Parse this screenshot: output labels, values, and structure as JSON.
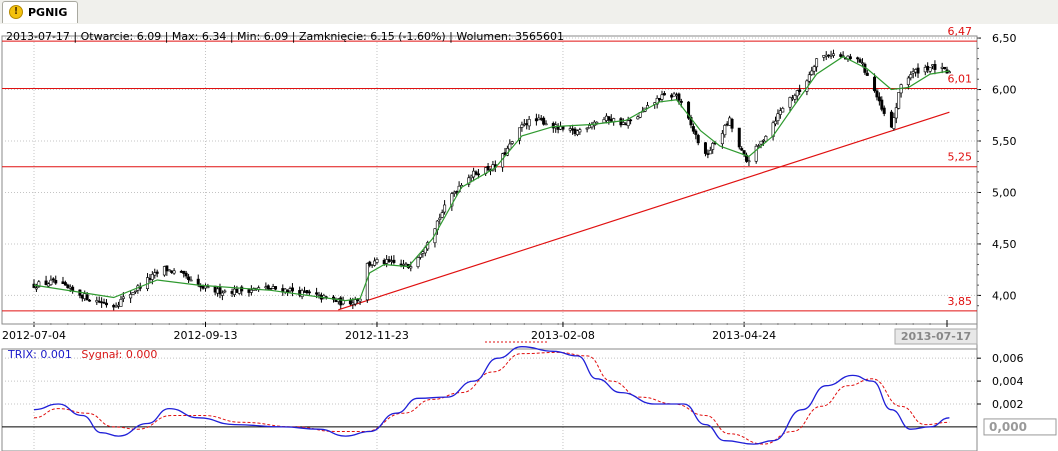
{
  "tab": {
    "label": "PGNIG",
    "icon": "warning-icon"
  },
  "info_bar": {
    "date": "2013-07-17",
    "open": "Otwarcie: 6.09",
    "high": "Max: 6.34",
    "low": "Min: 6.09",
    "close": "Zamknięcie: 6.15 (-1.60%)",
    "volume": "Wolumen: 3565601"
  },
  "trix_legend": {
    "trix": "TRIX: 0.001",
    "signal": "Sygnał: 0.000"
  },
  "colors": {
    "up_candle": "#ffffff",
    "down_candle": "#000000",
    "sma": "#2f9a2f",
    "levels": "#e01010",
    "trix": "#2020d8",
    "signal": "#e01010",
    "grid": "#c4c4c4"
  },
  "chart_data": [
    {
      "type": "candlestick",
      "title": "PGNIG",
      "x_tick_labels": [
        "2012-07-04",
        "2012-09-13",
        "2012-11-23",
        "2013-02-08",
        "2013-04-24"
      ],
      "x_cursor_label": "2013-07-17",
      "y_tick_labels": [
        "4,00",
        "4,50",
        "5,00",
        "5,50",
        "6,00",
        "6,50"
      ],
      "ylim": [
        3.8,
        6.52
      ],
      "grid": true,
      "horizontal_levels": [
        {
          "value": 6.47,
          "label": "6,47"
        },
        {
          "value": 6.01,
          "label": "6,01"
        },
        {
          "value": 5.25,
          "label": "5,25"
        },
        {
          "value": 3.85,
          "label": "3,85"
        }
      ],
      "trendline": {
        "from": [
          "2012-11-07",
          3.86
        ],
        "to": [
          "2013-07-18",
          5.78
        ]
      },
      "close_path": [
        [
          "2012-07-04",
          4.1
        ],
        [
          "2012-07-12",
          4.13
        ],
        [
          "2012-07-20",
          4.04
        ],
        [
          "2012-07-28",
          3.96
        ],
        [
          "2012-08-06",
          3.9
        ],
        [
          "2012-08-13",
          4.02
        ],
        [
          "2012-08-20",
          4.15
        ],
        [
          "2012-08-27",
          4.26
        ],
        [
          "2012-09-03",
          4.2
        ],
        [
          "2012-09-10",
          4.08
        ],
        [
          "2012-09-18",
          4.04
        ],
        [
          "2012-09-28",
          4.05
        ],
        [
          "2012-10-08",
          4.07
        ],
        [
          "2012-10-18",
          4.05
        ],
        [
          "2012-10-28",
          4.0
        ],
        [
          "2012-11-04",
          3.96
        ],
        [
          "2012-11-10",
          3.92
        ],
        [
          "2012-11-16",
          3.98
        ],
        [
          "2012-11-19",
          4.3
        ],
        [
          "2012-11-24",
          4.33
        ],
        [
          "2012-11-30",
          4.31
        ],
        [
          "2012-12-06",
          4.28
        ],
        [
          "2012-12-12",
          4.45
        ],
        [
          "2012-12-18",
          4.72
        ],
        [
          "2012-12-24",
          4.98
        ],
        [
          "2012-12-30",
          5.15
        ],
        [
          "2013-01-06",
          5.22
        ],
        [
          "2013-01-11",
          5.25
        ],
        [
          "2013-01-17",
          5.45
        ],
        [
          "2013-01-23",
          5.68
        ],
        [
          "2013-01-30",
          5.7
        ],
        [
          "2013-02-06",
          5.62
        ],
        [
          "2013-02-13",
          5.58
        ],
        [
          "2013-02-20",
          5.68
        ],
        [
          "2013-02-27",
          5.72
        ],
        [
          "2013-03-06",
          5.66
        ],
        [
          "2013-03-13",
          5.78
        ],
        [
          "2013-03-20",
          5.92
        ],
        [
          "2013-03-27",
          5.95
        ],
        [
          "2013-04-03",
          5.6
        ],
        [
          "2013-04-08",
          5.35
        ],
        [
          "2013-04-13",
          5.52
        ],
        [
          "2013-04-18",
          5.7
        ],
        [
          "2013-04-21",
          5.48
        ],
        [
          "2013-04-25",
          5.3
        ],
        [
          "2013-04-30",
          5.45
        ],
        [
          "2013-05-06",
          5.68
        ],
        [
          "2013-05-12",
          5.9
        ],
        [
          "2013-05-18",
          6.0
        ],
        [
          "2013-05-24",
          6.3
        ],
        [
          "2013-05-30",
          6.35
        ],
        [
          "2013-06-05",
          6.3
        ],
        [
          "2013-06-11",
          6.28
        ],
        [
          "2013-06-16",
          6.05
        ],
        [
          "2013-06-20",
          5.8
        ],
        [
          "2013-06-24",
          5.62
        ],
        [
          "2013-06-28",
          6.05
        ],
        [
          "2013-07-02",
          6.15
        ],
        [
          "2013-07-06",
          6.2
        ],
        [
          "2013-07-10",
          6.22
        ],
        [
          "2013-07-14",
          6.2
        ],
        [
          "2013-07-18",
          6.15
        ]
      ],
      "sma_path": [
        [
          "2012-07-04",
          4.1
        ],
        [
          "2012-08-06",
          3.98
        ],
        [
          "2012-08-24",
          4.15
        ],
        [
          "2012-09-10",
          4.1
        ],
        [
          "2012-10-10",
          4.05
        ],
        [
          "2012-11-10",
          3.95
        ],
        [
          "2012-11-16",
          3.97
        ],
        [
          "2012-11-20",
          4.22
        ],
        [
          "2012-11-26",
          4.3
        ],
        [
          "2012-12-06",
          4.28
        ],
        [
          "2012-12-16",
          4.55
        ],
        [
          "2012-12-28",
          5.05
        ],
        [
          "2013-01-11",
          5.24
        ],
        [
          "2013-01-22",
          5.55
        ],
        [
          "2013-02-04",
          5.64
        ],
        [
          "2013-02-20",
          5.66
        ],
        [
          "2013-03-06",
          5.7
        ],
        [
          "2013-03-20",
          5.88
        ],
        [
          "2013-03-27",
          5.9
        ],
        [
          "2013-04-06",
          5.6
        ],
        [
          "2013-04-14",
          5.45
        ],
        [
          "2013-04-26",
          5.35
        ],
        [
          "2013-05-06",
          5.55
        ],
        [
          "2013-05-14",
          5.82
        ],
        [
          "2013-05-24",
          6.15
        ],
        [
          "2013-06-04",
          6.32
        ],
        [
          "2013-06-14",
          6.2
        ],
        [
          "2013-06-24",
          6.0
        ],
        [
          "2013-07-01",
          6.02
        ],
        [
          "2013-07-10",
          6.15
        ],
        [
          "2013-07-18",
          6.18
        ]
      ]
    },
    {
      "type": "line",
      "series": [
        {
          "name": "TRIX"
        },
        {
          "name": "Sygnał"
        }
      ],
      "y_tick_labels": [
        "0,002",
        "0,004",
        "0,006"
      ],
      "y_current_label": "0,000",
      "ylim": [
        -0.0021,
        0.0068
      ],
      "grid": true,
      "trix": [
        [
          "2012-07-04",
          0.0015
        ],
        [
          "2012-07-14",
          0.002
        ],
        [
          "2012-07-24",
          0.001
        ],
        [
          "2012-08-01",
          -0.0005
        ],
        [
          "2012-08-08",
          -0.0008
        ],
        [
          "2012-08-20",
          0.0003
        ],
        [
          "2012-08-29",
          0.0016
        ],
        [
          "2012-09-10",
          0.0008
        ],
        [
          "2012-09-25",
          0.0002
        ],
        [
          "2012-10-15",
          0.0
        ],
        [
          "2012-10-30",
          -0.0002
        ],
        [
          "2012-11-10",
          -0.0008
        ],
        [
          "2012-11-20",
          -0.0004
        ],
        [
          "2012-12-01",
          0.0012
        ],
        [
          "2012-12-10",
          0.0025
        ],
        [
          "2012-12-22",
          0.0026
        ],
        [
          "2013-01-02",
          0.004
        ],
        [
          "2013-01-12",
          0.006
        ],
        [
          "2013-01-22",
          0.007
        ],
        [
          "2013-02-04",
          0.0066
        ],
        [
          "2013-02-14",
          0.0062
        ],
        [
          "2013-02-22",
          0.0042
        ],
        [
          "2013-03-04",
          0.003
        ],
        [
          "2013-03-18",
          0.002
        ],
        [
          "2013-03-30",
          0.002
        ],
        [
          "2013-04-08",
          0.0002
        ],
        [
          "2013-04-16",
          -0.0012
        ],
        [
          "2013-04-28",
          -0.0015
        ],
        [
          "2013-05-06",
          -0.0012
        ],
        [
          "2013-05-18",
          0.0015
        ],
        [
          "2013-05-28",
          0.0036
        ],
        [
          "2013-06-08",
          0.0045
        ],
        [
          "2013-06-16",
          0.004
        ],
        [
          "2013-06-24",
          0.0015
        ],
        [
          "2013-07-02",
          -0.0002
        ],
        [
          "2013-07-10",
          0.0
        ],
        [
          "2013-07-18",
          0.0008
        ]
      ],
      "signal": [
        [
          "2012-07-04",
          0.0008
        ],
        [
          "2012-07-14",
          0.0016
        ],
        [
          "2012-07-26",
          0.0012
        ],
        [
          "2012-08-06",
          0.0
        ],
        [
          "2012-08-16",
          -0.0002
        ],
        [
          "2012-08-30",
          0.001
        ],
        [
          "2012-09-12",
          0.001
        ],
        [
          "2012-09-28",
          0.0004
        ],
        [
          "2012-10-20",
          0.0
        ],
        [
          "2012-11-06",
          -0.0004
        ],
        [
          "2012-11-18",
          -0.0004
        ],
        [
          "2012-12-04",
          0.0012
        ],
        [
          "2012-12-16",
          0.0024
        ],
        [
          "2012-12-28",
          0.003
        ],
        [
          "2013-01-10",
          0.0048
        ],
        [
          "2013-01-22",
          0.0064
        ],
        [
          "2013-02-06",
          0.0065
        ],
        [
          "2013-02-18",
          0.0062
        ],
        [
          "2013-02-28",
          0.004
        ],
        [
          "2013-03-12",
          0.0026
        ],
        [
          "2013-03-26",
          0.002
        ],
        [
          "2013-04-08",
          0.001
        ],
        [
          "2013-04-18",
          -0.0006
        ],
        [
          "2013-05-02",
          -0.0015
        ],
        [
          "2013-05-14",
          -0.0004
        ],
        [
          "2013-05-26",
          0.0018
        ],
        [
          "2013-06-06",
          0.0036
        ],
        [
          "2013-06-16",
          0.0042
        ],
        [
          "2013-06-28",
          0.0018
        ],
        [
          "2013-07-08",
          0.0002
        ],
        [
          "2013-07-18",
          0.0004
        ]
      ]
    }
  ]
}
